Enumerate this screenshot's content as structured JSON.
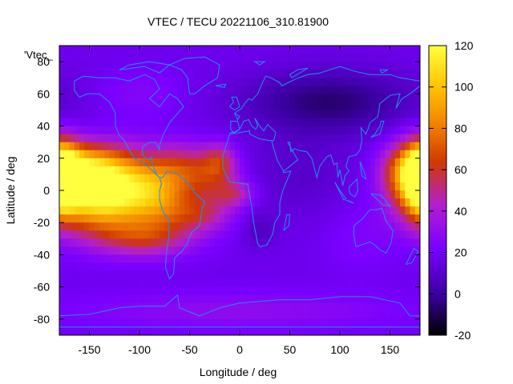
{
  "chart_data": {
    "type": "heatmap",
    "title": "VTEC / TECU 20221106_310.81900",
    "xlabel": "Longitude / deg",
    "ylabel": "Latitude / deg",
    "series_key": "'Vtec_",
    "xlim": [
      -180,
      180
    ],
    "ylim": [
      -90,
      90
    ],
    "xticks": [
      -150,
      -100,
      -50,
      0,
      50,
      100,
      150
    ],
    "yticks": [
      -80,
      -60,
      -40,
      -20,
      0,
      20,
      40,
      60,
      80
    ],
    "colorbar": {
      "range": [
        -20,
        120
      ],
      "ticks": [
        -20,
        0,
        20,
        40,
        60,
        80,
        100,
        120
      ],
      "palette": [
        "#000000",
        "#3a00a0",
        "#7a00ff",
        "#b21fd0",
        "#d03a00",
        "#f07e00",
        "#ffc400",
        "#ffff40"
      ]
    },
    "background_tecu": 18,
    "coastline_color": "#1e90e8",
    "features": [
      {
        "lon": -150,
        "lat": -2,
        "tecu": 90,
        "sx": 32,
        "sy": 16
      },
      {
        "lon": -110,
        "lat": 0,
        "tecu": 80,
        "sx": 36,
        "sy": 16
      },
      {
        "lon": -160,
        "lat": 15,
        "tecu": 62,
        "sx": 30,
        "sy": 10
      },
      {
        "lon": -175,
        "lat": 10,
        "tecu": 58,
        "sx": 12,
        "sy": 14
      },
      {
        "lon": -80,
        "lat": -5,
        "tecu": 45,
        "sx": 20,
        "sy": 14
      },
      {
        "lon": -55,
        "lat": 15,
        "tecu": 45,
        "sx": 22,
        "sy": 10
      },
      {
        "lon": -30,
        "lat": 5,
        "tecu": 40,
        "sx": 20,
        "sy": 10
      },
      {
        "lon": -20,
        "lat": 18,
        "tecu": 50,
        "sx": 12,
        "sy": 8
      },
      {
        "lon": -40,
        "lat": -15,
        "tecu": 48,
        "sx": 22,
        "sy": 8
      },
      {
        "lon": -5,
        "lat": -2,
        "tecu": 44,
        "sx": 14,
        "sy": 6
      },
      {
        "lon": -95,
        "lat": -30,
        "tecu": 50,
        "sx": 34,
        "sy": 8
      },
      {
        "lon": 170,
        "lat": 10,
        "tecu": 68,
        "sx": 18,
        "sy": 14
      },
      {
        "lon": 180,
        "lat": 5,
        "tecu": 62,
        "sx": 10,
        "sy": 14
      },
      {
        "lon": 90,
        "lat": 55,
        "tecu": -6,
        "sx": 60,
        "sy": 14
      },
      {
        "lon": 20,
        "lat": -25,
        "tecu": 8,
        "sx": 12,
        "sy": 8
      },
      {
        "lon": 60,
        "lat": 10,
        "tecu": 10,
        "sx": 40,
        "sy": 20
      },
      {
        "lon": -100,
        "lat": 60,
        "tecu": 26,
        "sx": 30,
        "sy": 10
      },
      {
        "lon": 0,
        "lat": -75,
        "tecu": 30,
        "sx": 120,
        "sy": 8
      },
      {
        "lon": 120,
        "lat": -30,
        "tecu": 24,
        "sx": 25,
        "sy": 15
      }
    ],
    "coastlines": [
      [
        [
          -165,
          68
        ],
        [
          -156,
          71
        ],
        [
          -140,
          70
        ],
        [
          -125,
          70
        ],
        [
          -110,
          68
        ],
        [
          -95,
          72
        ],
        [
          -85,
          69
        ],
        [
          -80,
          63
        ],
        [
          -90,
          57
        ],
        [
          -80,
          52
        ],
        [
          -70,
          60
        ],
        [
          -62,
          57
        ],
        [
          -56,
          52
        ],
        [
          -66,
          45
        ],
        [
          -70,
          42
        ],
        [
          -76,
          35
        ],
        [
          -80,
          28
        ],
        [
          -80,
          25
        ],
        [
          -84,
          30
        ],
        [
          -90,
          30
        ],
        [
          -97,
          27
        ],
        [
          -97,
          22
        ],
        [
          -91,
          19
        ],
        [
          -88,
          21
        ],
        [
          -87,
          16
        ],
        [
          -83,
          10
        ],
        [
          -80,
          8
        ],
        [
          -85,
          11
        ],
        [
          -92,
          15
        ],
        [
          -105,
          20
        ],
        [
          -110,
          25
        ],
        [
          -115,
          31
        ],
        [
          -120,
          34
        ],
        [
          -124,
          40
        ],
        [
          -124,
          48
        ],
        [
          -130,
          55
        ],
        [
          -140,
          60
        ],
        [
          -152,
          60
        ],
        [
          -160,
          58
        ],
        [
          -165,
          62
        ],
        [
          -165,
          68
        ]
      ],
      [
        [
          -80,
          8
        ],
        [
          -77,
          8
        ],
        [
          -72,
          12
        ],
        [
          -62,
          10
        ],
        [
          -52,
          5
        ],
        [
          -44,
          -2
        ],
        [
          -35,
          -7
        ],
        [
          -38,
          -13
        ],
        [
          -40,
          -22
        ],
        [
          -48,
          -26
        ],
        [
          -53,
          -34
        ],
        [
          -58,
          -38
        ],
        [
          -65,
          -42
        ],
        [
          -66,
          -52
        ],
        [
          -70,
          -55
        ],
        [
          -74,
          -48
        ],
        [
          -73,
          -38
        ],
        [
          -71,
          -30
        ],
        [
          -70,
          -18
        ],
        [
          -76,
          -14
        ],
        [
          -80,
          -6
        ],
        [
          -80,
          0
        ],
        [
          -78,
          4
        ],
        [
          -80,
          8
        ]
      ],
      [
        [
          -50,
          60
        ],
        [
          -45,
          60
        ],
        [
          -35,
          65
        ],
        [
          -22,
          70
        ],
        [
          -20,
          78
        ],
        [
          -35,
          83
        ],
        [
          -55,
          82
        ],
        [
          -70,
          78
        ],
        [
          -58,
          75
        ],
        [
          -52,
          70
        ],
        [
          -50,
          60
        ]
      ],
      [
        [
          -10,
          36
        ],
        [
          -5,
          36
        ],
        [
          0,
          38
        ],
        [
          4,
          43
        ],
        [
          9,
          44
        ],
        [
          12,
          40
        ],
        [
          16,
          38
        ],
        [
          18,
          40
        ],
        [
          15,
          45
        ],
        [
          20,
          40
        ],
        [
          24,
          37
        ],
        [
          28,
          41
        ],
        [
          36,
          36
        ],
        [
          34,
          31
        ],
        [
          30,
          31
        ],
        [
          20,
          32
        ],
        [
          10,
          35
        ],
        [
          10,
          37
        ],
        [
          0,
          36
        ],
        [
          -10,
          35
        ],
        [
          -17,
          21
        ],
        [
          -17,
          14
        ],
        [
          -10,
          5
        ],
        [
          -5,
          5
        ],
        [
          5,
          4
        ],
        [
          8,
          4
        ],
        [
          10,
          -3
        ],
        [
          12,
          -10
        ],
        [
          14,
          -20
        ],
        [
          18,
          -33
        ],
        [
          20,
          -35
        ],
        [
          27,
          -34
        ],
        [
          33,
          -27
        ],
        [
          35,
          -20
        ],
        [
          40,
          -15
        ],
        [
          40,
          -8
        ],
        [
          43,
          0
        ],
        [
          51,
          12
        ],
        [
          44,
          11
        ],
        [
          43,
          13
        ],
        [
          38,
          18
        ],
        [
          33,
          28
        ],
        [
          32,
          31
        ],
        [
          30,
          31
        ]
      ],
      [
        [
          0,
          38
        ],
        [
          -2,
          43
        ],
        [
          -9,
          43
        ],
        [
          -9,
          38
        ],
        [
          -6,
          36
        ],
        [
          0,
          38
        ]
      ],
      [
        [
          -5,
          48
        ],
        [
          2,
          51
        ],
        [
          5,
          54
        ],
        [
          9,
          57
        ],
        [
          12,
          56
        ],
        [
          18,
          60
        ],
        [
          22,
          66
        ],
        [
          26,
          71
        ],
        [
          31,
          70
        ],
        [
          40,
          67
        ],
        [
          42,
          65
        ],
        [
          55,
          69
        ],
        [
          68,
          72
        ],
        [
          80,
          73
        ],
        [
          100,
          77
        ],
        [
          115,
          74
        ],
        [
          130,
          72
        ],
        [
          150,
          72
        ],
        [
          160,
          70
        ],
        [
          170,
          69
        ],
        [
          180,
          68
        ]
      ],
      [
        [
          -5,
          48
        ],
        [
          -2,
          44
        ],
        [
          0,
          46
        ],
        [
          -5,
          48
        ]
      ],
      [
        [
          180,
          65
        ],
        [
          170,
          60
        ],
        [
          162,
          57
        ],
        [
          156,
          51
        ],
        [
          160,
          60
        ],
        [
          150,
          59
        ],
        [
          140,
          54
        ],
        [
          138,
          46
        ],
        [
          130,
          42
        ],
        [
          128,
          38
        ],
        [
          126,
          35
        ],
        [
          121,
          39
        ],
        [
          122,
          31
        ],
        [
          120,
          25
        ],
        [
          116,
          22
        ],
        [
          109,
          21
        ],
        [
          106,
          15
        ],
        [
          109,
          12
        ],
        [
          105,
          9
        ],
        [
          103,
          3
        ],
        [
          100,
          13
        ],
        [
          98,
          8
        ],
        [
          97,
          17
        ],
        [
          94,
          16
        ],
        [
          91,
          22
        ],
        [
          87,
          21
        ],
        [
          80,
          15
        ],
        [
          77,
          8
        ],
        [
          72,
          20
        ],
        [
          67,
          24
        ],
        [
          58,
          25
        ],
        [
          55,
          26
        ],
        [
          51,
          24
        ],
        [
          50,
          30
        ],
        [
          48,
          30
        ],
        [
          55,
          22
        ],
        [
          58,
          19
        ],
        [
          52,
          16
        ],
        [
          44,
          12
        ]
      ],
      [
        [
          114,
          -22
        ],
        [
          122,
          -18
        ],
        [
          130,
          -12
        ],
        [
          137,
          -12
        ],
        [
          142,
          -11
        ],
        [
          146,
          -19
        ],
        [
          153,
          -25
        ],
        [
          151,
          -33
        ],
        [
          146,
          -39
        ],
        [
          140,
          -37
        ],
        [
          135,
          -34
        ],
        [
          130,
          -32
        ],
        [
          116,
          -35
        ],
        [
          114,
          -28
        ],
        [
          114,
          -22
        ]
      ],
      [
        [
          95,
          5
        ],
        [
          104,
          -6
        ],
        [
          106,
          -5
        ],
        [
          100,
          0
        ],
        [
          95,
          5
        ]
      ],
      [
        [
          106,
          -6
        ],
        [
          114,
          -8
        ],
        [
          111,
          -7
        ],
        [
          106,
          -6
        ]
      ],
      [
        [
          109,
          2
        ],
        [
          117,
          7
        ],
        [
          118,
          0
        ],
        [
          115,
          -4
        ],
        [
          110,
          -2
        ],
        [
          109,
          2
        ]
      ],
      [
        [
          131,
          -2
        ],
        [
          141,
          -3
        ],
        [
          150,
          -10
        ],
        [
          143,
          -9
        ],
        [
          131,
          -2
        ]
      ],
      [
        [
          120,
          18
        ],
        [
          122,
          15
        ],
        [
          125,
          10
        ],
        [
          126,
          7
        ],
        [
          122,
          9
        ],
        [
          120,
          18
        ]
      ],
      [
        [
          131,
          33
        ],
        [
          135,
          35
        ],
        [
          140,
          40
        ],
        [
          141,
          43
        ],
        [
          144,
          43
        ],
        [
          140,
          35
        ],
        [
          131,
          33
        ]
      ],
      [
        [
          44,
          -25
        ],
        [
          47,
          -15
        ],
        [
          50,
          -15
        ],
        [
          49,
          -22
        ],
        [
          44,
          -25
        ]
      ],
      [
        [
          -10,
          52
        ],
        [
          -6,
          55
        ],
        [
          -8,
          58
        ],
        [
          -3,
          58
        ],
        [
          0,
          52
        ],
        [
          -5,
          50
        ],
        [
          -10,
          52
        ]
      ],
      [
        [
          -24,
          65
        ],
        [
          -14,
          66
        ],
        [
          -15,
          64
        ],
        [
          -24,
          65
        ]
      ],
      [
        [
          166,
          -46
        ],
        [
          174,
          -36
        ],
        [
          178,
          -38
        ],
        [
          172,
          -45
        ],
        [
          166,
          -46
        ]
      ],
      [
        [
          -180,
          -78
        ],
        [
          -150,
          -77
        ],
        [
          -120,
          -73
        ],
        [
          -100,
          -72
        ],
        [
          -75,
          -72
        ],
        [
          -62,
          -65
        ],
        [
          -60,
          -73
        ],
        [
          -40,
          -78
        ],
        [
          -20,
          -73
        ],
        [
          0,
          -70
        ],
        [
          40,
          -68
        ],
        [
          70,
          -68
        ],
        [
          100,
          -66
        ],
        [
          130,
          -66
        ],
        [
          160,
          -70
        ],
        [
          170,
          -78
        ],
        [
          180,
          -78
        ]
      ],
      [
        [
          -180,
          -85
        ],
        [
          180,
          -85
        ]
      ],
      [
        [
          -120,
          75
        ],
        [
          -95,
          77
        ],
        [
          -80,
          73
        ],
        [
          -70,
          78
        ],
        [
          -90,
          80
        ],
        [
          -110,
          78
        ],
        [
          -120,
          75
        ]
      ],
      [
        [
          140,
          75
        ],
        [
          148,
          75
        ],
        [
          142,
          73
        ],
        [
          140,
          75
        ]
      ],
      [
        [
          20,
          78
        ],
        [
          25,
          80
        ],
        [
          15,
          80
        ],
        [
          20,
          78
        ]
      ],
      [
        [
          50,
          72
        ],
        [
          58,
          75
        ],
        [
          68,
          76
        ],
        [
          52,
          70
        ],
        [
          50,
          72
        ]
      ]
    ]
  }
}
